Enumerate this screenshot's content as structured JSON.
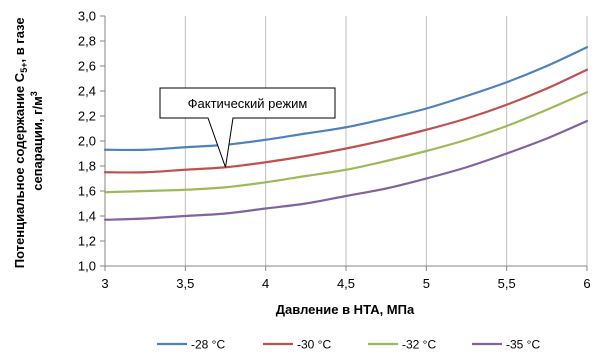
{
  "chart_data": {
    "type": "line",
    "xlabel": "Давление в НТА, МПа",
    "ylabel_line1": "Потенциальное содержание С",
    "ylabel_sub": "5+",
    "ylabel_line1_tail": ", в газе",
    "ylabel_line2": "сепарации, г/м",
    "ylabel_sup": "3",
    "xlim": [
      3,
      6
    ],
    "ylim": [
      1.0,
      3.0
    ],
    "x_ticks": [
      3,
      3.5,
      4,
      4.5,
      5,
      5.5,
      6
    ],
    "x_tick_labels": [
      "3",
      "3,5",
      "4",
      "4,5",
      "5",
      "5,5",
      "6"
    ],
    "y_ticks": [
      1.0,
      1.2,
      1.4,
      1.6,
      1.8,
      2.0,
      2.2,
      2.4,
      2.6,
      2.8,
      3.0
    ],
    "y_tick_labels": [
      "1,0",
      "1,2",
      "1,4",
      "1,6",
      "1,8",
      "2,0",
      "2,2",
      "2,4",
      "2,6",
      "2,8",
      "3,0"
    ],
    "grid": "vertical",
    "legend_position": "bottom",
    "series": [
      {
        "name": "-28 °C",
        "color": "#4f81bd",
        "x": [
          3.0,
          3.25,
          3.5,
          3.75,
          4.0,
          4.25,
          4.5,
          4.75,
          5.0,
          5.25,
          5.5,
          5.75,
          6.0
        ],
        "values": [
          1.93,
          1.93,
          1.95,
          1.97,
          2.01,
          2.06,
          2.11,
          2.18,
          2.26,
          2.36,
          2.47,
          2.6,
          2.75
        ]
      },
      {
        "name": "-30 °C",
        "color": "#c0504d",
        "x": [
          3.0,
          3.25,
          3.5,
          3.75,
          4.0,
          4.25,
          4.5,
          4.75,
          5.0,
          5.25,
          5.5,
          5.75,
          6.0
        ],
        "values": [
          1.75,
          1.75,
          1.77,
          1.79,
          1.83,
          1.88,
          1.94,
          2.01,
          2.09,
          2.18,
          2.29,
          2.42,
          2.57
        ]
      },
      {
        "name": "-32 °C",
        "color": "#9bbb59",
        "x": [
          3.0,
          3.25,
          3.5,
          3.75,
          4.0,
          4.25,
          4.5,
          4.75,
          5.0,
          5.25,
          5.5,
          5.75,
          6.0
        ],
        "values": [
          1.59,
          1.6,
          1.61,
          1.63,
          1.67,
          1.72,
          1.77,
          1.84,
          1.92,
          2.01,
          2.12,
          2.25,
          2.39
        ]
      },
      {
        "name": "-35 °C",
        "color": "#8064a2",
        "x": [
          3.0,
          3.25,
          3.5,
          3.75,
          4.0,
          4.25,
          4.5,
          4.75,
          5.0,
          5.25,
          5.5,
          5.75,
          6.0
        ],
        "values": [
          1.37,
          1.38,
          1.4,
          1.42,
          1.46,
          1.5,
          1.56,
          1.62,
          1.7,
          1.79,
          1.9,
          2.02,
          2.16
        ]
      }
    ],
    "annotation": {
      "text": "Фактический режим",
      "point": {
        "x": 3.75,
        "y": 1.79
      }
    }
  }
}
